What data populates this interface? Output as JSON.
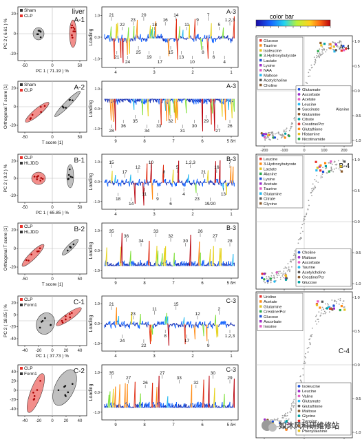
{
  "colorbar_label": "color bar",
  "watermark": "如沐风科研维修站",
  "colors": {
    "sham": "#333333",
    "clp": "#e8322c",
    "ellipse_gray": "#8c8c8c",
    "ellipse_red": "#e8322c",
    "base": "#1a33b5"
  },
  "scores": [
    {
      "id": "A-1",
      "tag": "liver",
      "legend": [
        "Sham",
        "CLP"
      ],
      "xlabel": "PC 1 ( 71.19 ) %",
      "ylabel": "PC 2 ( 6.61 ) %",
      "xticks": [
        "-50",
        "0",
        "50"
      ],
      "yticks": [
        "-20",
        "0",
        "20"
      ],
      "kind": "pca_a"
    },
    {
      "id": "A-2",
      "tag": "",
      "legend": [
        "Sham",
        "CLP"
      ],
      "xlabel": "T score [1]",
      "ylabel": "Orthogonal T score [1]",
      "xticks": [
        "-50",
        "0",
        "50"
      ],
      "yticks": [
        "-20",
        "0",
        "20"
      ],
      "kind": "opls_a"
    },
    {
      "id": "B-1",
      "tag": "",
      "legend": [
        "CLP",
        "HLJDD"
      ],
      "xlabel": "PC 1 ( 65.85 ) %",
      "ylabel": "PC 2 ( 9.2 ) %",
      "xticks": [
        "-50",
        "0",
        "50"
      ],
      "yticks": [
        "-20",
        "0",
        "20"
      ],
      "kind": "pca_b"
    },
    {
      "id": "B-2",
      "tag": "",
      "legend": [
        "CLP",
        "HLJDD"
      ],
      "xlabel": "T score [1]",
      "ylabel": "Orthogonal T score [1]",
      "xticks": [
        "-50",
        "0",
        "50"
      ],
      "yticks": [
        "-20",
        "0",
        "20"
      ],
      "kind": "opls_b"
    },
    {
      "id": "C-1",
      "tag": "",
      "legend": [
        "CLP",
        "Form1"
      ],
      "xlabel": "PC 1 ( 37.73 ) %",
      "ylabel": "PC 2 ( 18.05 ) %",
      "xticks": [
        "-40",
        "-20",
        "0",
        "20",
        "40"
      ],
      "yticks": [
        "-40",
        "-20",
        "0",
        "20"
      ],
      "kind": "pca_c"
    },
    {
      "id": "C-2",
      "tag": "",
      "legend": [
        "CLP",
        "Form1"
      ],
      "xlabel": "",
      "ylabel": "",
      "xticks": [
        "-40",
        "-20",
        "0",
        "20",
        "40"
      ],
      "yticks": [
        "-40",
        "-20",
        "0",
        "20",
        "40"
      ],
      "kind": "opls_c"
    }
  ],
  "loadings": [
    {
      "id": "A-3",
      "ylabel": "Loading",
      "xticks": [
        "4",
        "3",
        "2",
        "1"
      ],
      "numbers": [
        "21",
        "21",
        "22",
        "24",
        "23",
        "25",
        "20",
        "19",
        "18",
        "17",
        "16",
        "15",
        "14",
        "13",
        "11",
        "10",
        "9",
        "8",
        "7",
        "6",
        "5",
        "4",
        "1,2,3"
      ],
      "dir": "both",
      "seed": 3
    },
    {
      "id": "A-3",
      "ylabel": "Loading",
      "xticks": [
        "9",
        "8",
        "7",
        "6",
        "5 δH"
      ],
      "numbers": [
        "28",
        "36",
        "35",
        "34",
        "33",
        "32",
        "31",
        "30",
        "29",
        "27",
        "26"
      ],
      "dir": "down",
      "seed": 7
    },
    {
      "id": "B-3",
      "ylabel": "Loading",
      "xticks": [
        "4",
        "3",
        "2",
        "1"
      ],
      "numbers": [
        "15",
        "18",
        "17",
        "14",
        "12",
        "11",
        "10",
        "9",
        "8",
        "6",
        "5",
        "4",
        "1,2,3",
        "23",
        "21",
        "19/20",
        "16",
        "13",
        "7"
      ],
      "dir": "both",
      "seed": 11
    },
    {
      "id": "B-3",
      "ylabel": "Loading",
      "xticks": [
        "9",
        "8",
        "7",
        "6",
        "5 δH"
      ],
      "numbers": [
        "35",
        "36",
        "34",
        "33",
        "32",
        "30",
        "26",
        "27",
        "28"
      ],
      "dir": "up",
      "seed": 17
    },
    {
      "id": "C-3",
      "ylabel": "Loading",
      "xticks": [
        "4",
        "3",
        "2",
        "1"
      ],
      "numbers": [
        "21",
        "24",
        "23",
        "22",
        "11",
        "8",
        "15",
        "17",
        "12",
        "9",
        "2",
        "1,2,3"
      ],
      "dir": "both",
      "seed": 23
    },
    {
      "id": "C-3",
      "ylabel": "Loading",
      "xticks": [
        "9",
        "8",
        "7",
        "6",
        "5 δH"
      ],
      "numbers": [
        "35",
        "27",
        "26",
        "27",
        "33",
        "32",
        "30",
        "29"
      ],
      "dir": "up",
      "seed": 29
    }
  ],
  "corr": [
    {
      "id": "A-4",
      "yticks": [
        "1.0",
        "0.5",
        "0.0",
        "-0.5",
        "-1.0"
      ],
      "xticks": [
        "-200",
        "-100",
        "0",
        "100",
        "200"
      ],
      "legend_top": [
        "Glucose",
        "Taurine",
        "Isoleucine",
        "3-Hydroxybutyrate",
        "Lactate",
        "Lysine",
        "NAA",
        "Maltose",
        "Acetylcholine",
        "Choline"
      ],
      "legend_bottom": [
        "Glutamate",
        "Ascorbate",
        "Acetate",
        "Leucine",
        "Succinate",
        "Glutamine",
        "Citrate",
        "Creatine/Pcr",
        "Glutathione",
        "Histamine",
        "Nicotinamide"
      ],
      "legend_bottom_extra": "Alanine"
    },
    {
      "id": "B-4",
      "yticks": [
        "1.0",
        "0.5",
        "0.0",
        "-0.5",
        "-1.0"
      ],
      "xticks": [
        "-200",
        "-100",
        "0",
        "100",
        "200"
      ],
      "legend_top": [
        "Leucine",
        "3-Hydroxybutyrate",
        "Lactate",
        "Alanine",
        "Lysine",
        "Acetate",
        "Taurine",
        "Glutamine",
        "Citrate",
        "Glycine"
      ],
      "legend_bottom": [
        "Choline",
        "Maltose",
        "Ascorbate",
        "Taurine",
        "Acetylcholine",
        "Creatine/Pcr",
        "Glucose"
      ],
      "legend_bottom_extra": ""
    },
    {
      "id": "C-4",
      "yticks": [
        "1.0",
        "0.5",
        "0.0",
        "-0.5",
        "-1.0"
      ],
      "xticks": [
        "-200",
        "0",
        "200"
      ],
      "legend_top": [
        "Uridine",
        "Acetate",
        "Glutamine",
        "Creatine/Pcr",
        "Glucose",
        "Ascorbate",
        "Inosine"
      ],
      "legend_bottom": [
        "Isoleucine",
        "Leucine",
        "Valine",
        "Glutamate",
        "Glutathione",
        "Maltose",
        "Glycine",
        "Tyrosine",
        "Histamine",
        "Phenylalanine"
      ],
      "legend_bottom_extra": ""
    }
  ],
  "chart_data": [
    {
      "type": "scatter",
      "id": "A-1",
      "xlabel": "PC 1 ( 71.19 ) %",
      "ylabel": "PC 2 ( 6.61 ) %",
      "series": [
        {
          "name": "Sham"
        },
        {
          "name": "CLP"
        }
      ]
    },
    {
      "type": "scatter",
      "id": "A-2",
      "xlabel": "T score [1]",
      "ylabel": "Orthogonal T score [1]",
      "series": [
        {
          "name": "Sham"
        },
        {
          "name": "CLP"
        }
      ]
    },
    {
      "type": "scatter",
      "id": "B-1",
      "xlabel": "PC 1 ( 65.85 ) %",
      "ylabel": "PC 2 ( 9.2 ) %",
      "series": [
        {
          "name": "CLP"
        },
        {
          "name": "HLJDD"
        }
      ]
    },
    {
      "type": "scatter",
      "id": "B-2",
      "xlabel": "T score [1]",
      "ylabel": "Orthogonal T score [1]",
      "series": [
        {
          "name": "CLP"
        },
        {
          "name": "HLJDD"
        }
      ]
    },
    {
      "type": "scatter",
      "id": "C-1",
      "xlabel": "PC 1 ( 37.73 ) %",
      "ylabel": "PC 2 ( 18.05 ) %",
      "series": [
        {
          "name": "CLP"
        },
        {
          "name": "Form1"
        }
      ]
    },
    {
      "type": "scatter",
      "id": "C-2",
      "series": [
        {
          "name": "CLP"
        },
        {
          "name": "Form1"
        }
      ]
    },
    {
      "type": "line",
      "id": "A-3",
      "ylabel": "Loading",
      "xlim": [
        4.5,
        0.5
      ]
    },
    {
      "type": "line",
      "id": "A-3",
      "ylabel": "Loading",
      "xlim": [
        9.5,
        5
      ]
    },
    {
      "type": "line",
      "id": "B-3",
      "ylabel": "Loading",
      "xlim": [
        4.5,
        0.5
      ]
    },
    {
      "type": "line",
      "id": "B-3",
      "ylabel": "Loading",
      "xlim": [
        9.5,
        5
      ]
    },
    {
      "type": "line",
      "id": "C-3",
      "ylabel": "Loading",
      "xlim": [
        4.5,
        0.5
      ]
    },
    {
      "type": "line",
      "id": "C-3",
      "ylabel": "Loading",
      "xlim": [
        9.5,
        5
      ]
    },
    {
      "type": "scatter",
      "id": "A-4",
      "ylim": [
        -1,
        1
      ],
      "xlim": [
        -250,
        250
      ]
    },
    {
      "type": "scatter",
      "id": "B-4",
      "ylim": [
        -1,
        1
      ],
      "xlim": [
        -250,
        250
      ]
    },
    {
      "type": "scatter",
      "id": "C-4",
      "ylim": [
        -1,
        1
      ],
      "xlim": [
        -250,
        250
      ]
    }
  ]
}
